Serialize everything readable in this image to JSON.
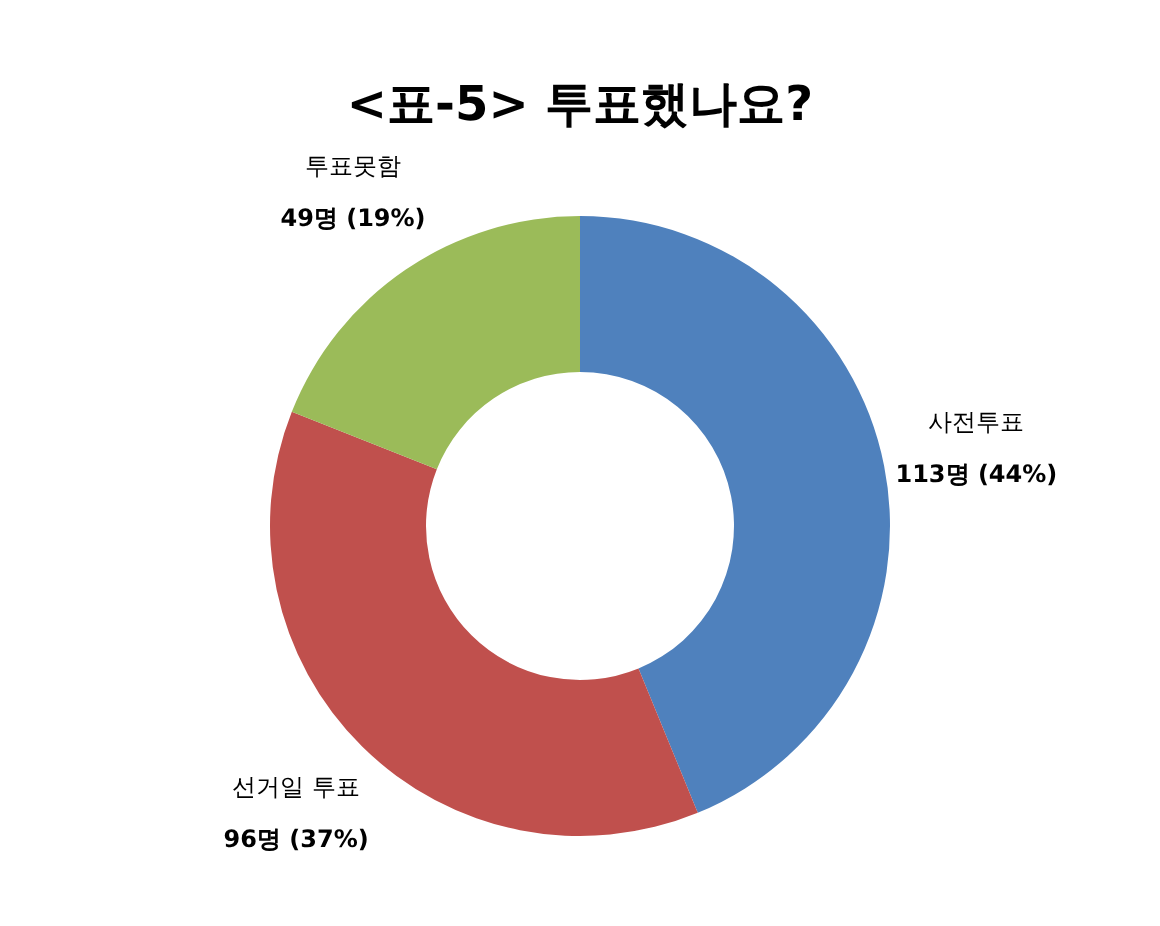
{
  "chart_data": {
    "type": "donut",
    "title": "<표-5> 투표했나요?",
    "categories": [
      "사전투표",
      "선거일 투표",
      "투표못함"
    ],
    "values": [
      113,
      96,
      49
    ],
    "colors": [
      "#4f81bd",
      "#c0504d",
      "#9bbb59"
    ],
    "value_labels": [
      "113명 (44%)",
      "96명 (37%)",
      "49명 (19%)"
    ]
  }
}
